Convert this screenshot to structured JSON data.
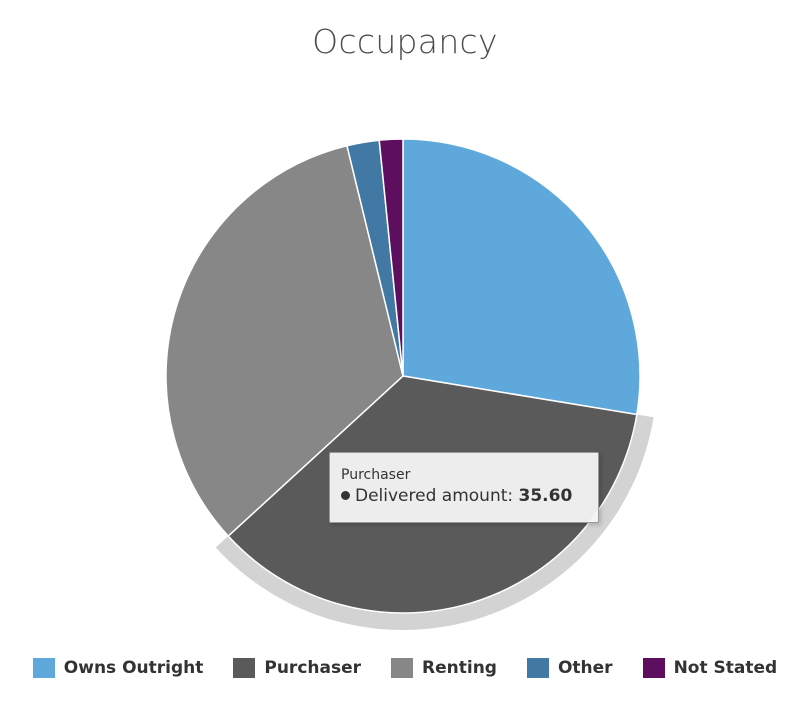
{
  "chart_data": {
    "type": "pie",
    "title": "Occupancy",
    "legend_position": "bottom",
    "series_label": "Delivered amount",
    "slices": [
      {
        "name": "Owns Outright",
        "value": 27.6,
        "color": "#5fa8dc"
      },
      {
        "name": "Purchaser",
        "value": 35.6,
        "color": "#5a5a5a"
      },
      {
        "name": "Renting",
        "value": 33.0,
        "color": "#878787"
      },
      {
        "name": "Other",
        "value": 2.2,
        "color": "#4178a4"
      },
      {
        "name": "Not Stated",
        "value": 1.6,
        "color": "#5e0e5e"
      }
    ],
    "highlighted": "Purchaser"
  },
  "tooltip": {
    "title": "Purchaser",
    "label": "Delivered amount:",
    "value": "35.60"
  }
}
